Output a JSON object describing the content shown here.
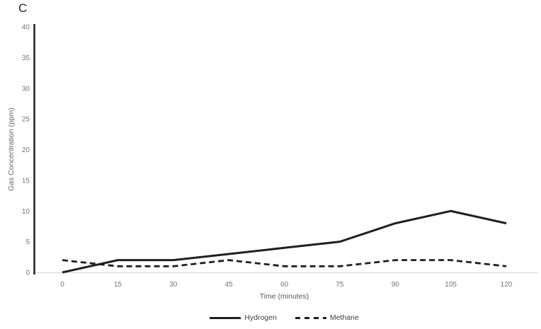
{
  "panel_label": "C",
  "chart_data": {
    "type": "line",
    "title": "C",
    "xlabel": "Time (minutes)",
    "ylabel": "Gas Concentration (ppm)",
    "x": [
      0,
      15,
      30,
      45,
      60,
      75,
      90,
      105,
      120
    ],
    "xlim": [
      0,
      120
    ],
    "ylim": [
      0,
      40
    ],
    "yticks": [
      0,
      5,
      10,
      15,
      20,
      25,
      30,
      35,
      40
    ],
    "grid": false,
    "legend_position": "bottom",
    "series": [
      {
        "name": "Hydrogen",
        "line_style": "solid",
        "color": "#1f1f1f",
        "values": [
          0,
          2,
          2,
          3,
          4,
          5,
          8,
          10,
          8
        ]
      },
      {
        "name": "Methane",
        "line_style": "dashed",
        "color": "#1f1f1f",
        "values": [
          2,
          1,
          1,
          2,
          1,
          1,
          2,
          2,
          1
        ]
      }
    ],
    "colors": {
      "y_axis_line": "#262626",
      "x_axis_line": "#d9d9d9",
      "tick_label": "#757575",
      "axis_title": "#595959",
      "legend_text": "#404040",
      "background": "#ffffff"
    }
  }
}
